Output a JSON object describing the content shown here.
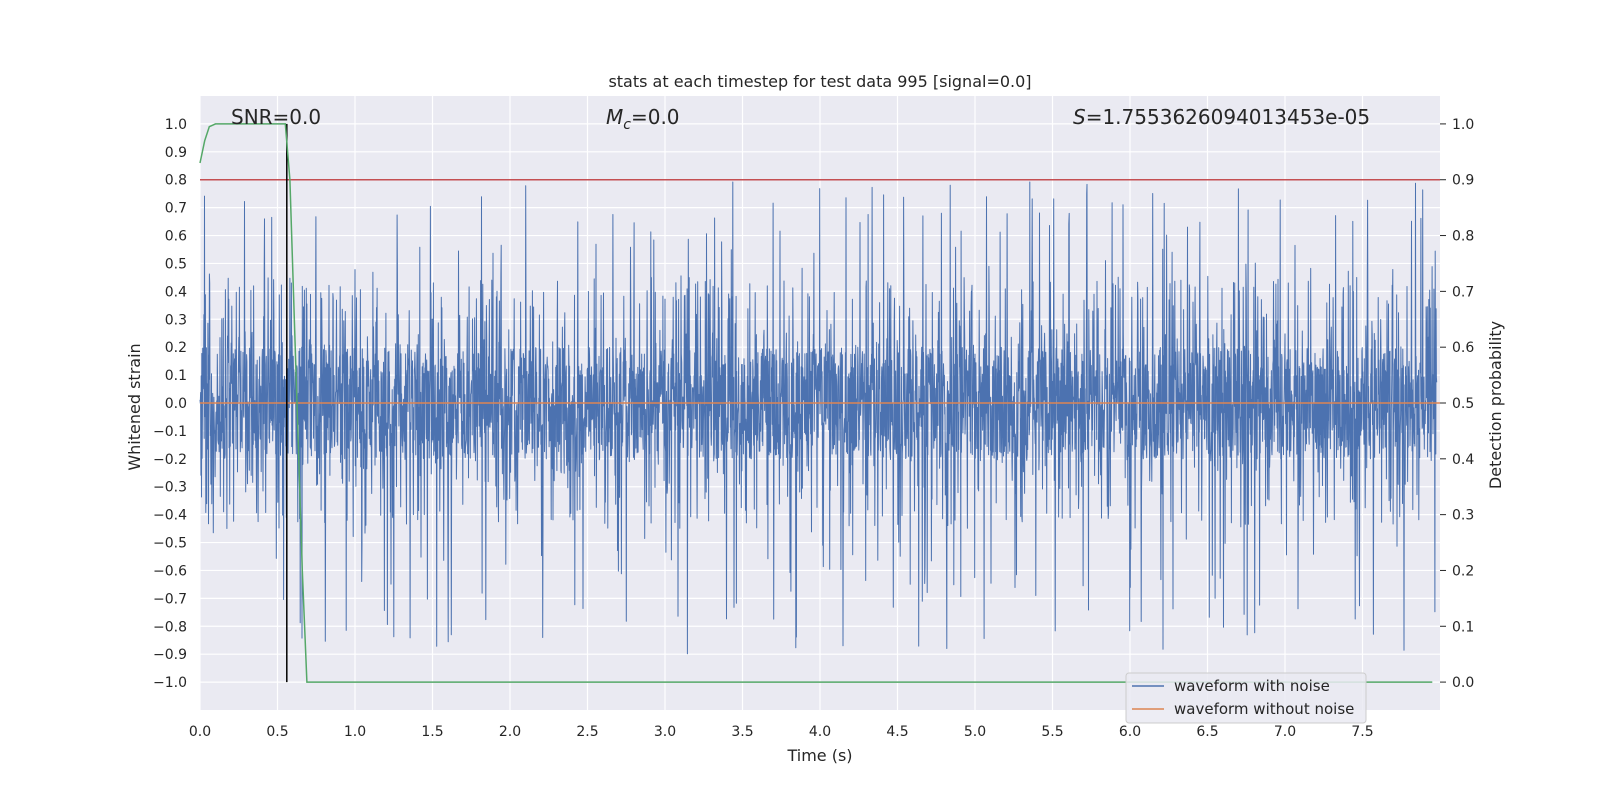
{
  "chart_data": {
    "type": "line",
    "title": "stats at each timestep for test data 995 [signal=0.0]",
    "xlabel": "Time (s)",
    "ylabel": "Whitened strain",
    "y2label": "Detection probability",
    "xlim": [
      0.0,
      8.0
    ],
    "ylim": [
      -1.1,
      1.1
    ],
    "y2lim": [
      -0.05,
      1.05
    ],
    "x_ticks": [
      0.0,
      0.5,
      1.0,
      1.5,
      2.0,
      2.5,
      3.0,
      3.5,
      4.0,
      4.5,
      5.0,
      5.5,
      6.0,
      6.5,
      7.0,
      7.5
    ],
    "x_tick_labels": [
      "0.0",
      "0.5",
      "1.0",
      "1.5",
      "2.0",
      "2.5",
      "3.0",
      "3.5",
      "4.0",
      "4.5",
      "5.0",
      "5.5",
      "6.0",
      "6.5",
      "7.0",
      "7.5"
    ],
    "y_ticks": [
      1.0,
      0.9,
      0.8,
      0.7,
      0.6,
      0.5,
      0.4,
      0.3,
      0.2,
      0.1,
      0.0,
      -0.1,
      -0.2,
      -0.3,
      -0.4,
      -0.5,
      -0.6,
      -0.7,
      -0.8,
      -0.9,
      -1.0
    ],
    "y_tick_labels": [
      "1.0",
      "0.9",
      "0.8",
      "0.7",
      "0.6",
      "0.5",
      "0.4",
      "0.3",
      "0.2",
      "0.1",
      "0.0",
      "−0.1",
      "−0.2",
      "−0.3",
      "−0.4",
      "−0.5",
      "−0.6",
      "−0.7",
      "−0.8",
      "−0.9",
      "−1.0"
    ],
    "y2_ticks": [
      1.0,
      0.9,
      0.8,
      0.7,
      0.6,
      0.5,
      0.4,
      0.3,
      0.2,
      0.1,
      0.0
    ],
    "y2_tick_labels": [
      "1.0",
      "0.9",
      "0.8",
      "0.7",
      "0.6",
      "0.5",
      "0.4",
      "0.3",
      "0.2",
      "0.1",
      "0.0"
    ],
    "annotations": {
      "snr": "SNR=0.0",
      "mc_symbol": "M",
      "mc_sub": "c",
      "mc_value": "=0.0",
      "s_symbol": "S",
      "s_value": "=1.7553626094013453e-05"
    },
    "series": [
      {
        "name": "waveform with noise",
        "color": "#4c72b0",
        "axis": "left",
        "description_values": "dense whitened noise, t=0 to 8 s",
        "noise_seed": 995,
        "sample_rate_hz": 512,
        "core_abs": 0.2,
        "spike_envelope_pos": 0.8,
        "spike_envelope_neg": -0.9
      },
      {
        "name": "waveform without noise",
        "color": "#dd8452",
        "axis": "left",
        "x": [
          0.0,
          8.0
        ],
        "y": [
          0.0,
          0.0
        ]
      },
      {
        "name": "detection probability",
        "color": "#55a868",
        "axis": "right",
        "x": [
          0.0,
          0.03,
          0.06,
          0.1,
          0.2,
          0.3,
          0.4,
          0.5,
          0.55,
          0.58,
          0.62,
          0.66,
          0.69,
          1.0,
          2.0,
          3.0,
          4.0,
          5.0,
          6.0,
          7.0,
          7.95
        ],
        "y": [
          0.93,
          0.97,
          0.995,
          1.0,
          1.0,
          1.0,
          1.0,
          1.0,
          1.0,
          0.9,
          0.55,
          0.2,
          0.0,
          0.0,
          0.0,
          0.0,
          0.0,
          0.0,
          0.0,
          0.0,
          0.0
        ]
      }
    ],
    "threshold": {
      "value": 0.9,
      "axis": "right",
      "color": "#c44e52"
    },
    "marker_line": {
      "x": 0.56,
      "y_from": -1.0,
      "y_to": 1.0,
      "color": "#000000"
    },
    "legend": {
      "placement": "lower-right",
      "entries": [
        {
          "label": "waveform with noise",
          "color": "#4c72b0"
        },
        {
          "label": "waveform without noise",
          "color": "#dd8452"
        }
      ]
    },
    "grid": true
  }
}
